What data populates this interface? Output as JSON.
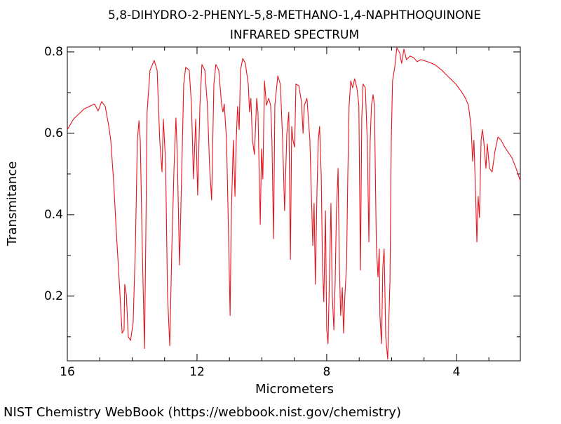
{
  "chart_data": {
    "type": "line",
    "title": "5,8-DIHYDRO-2-PHENYL-5,8-METHANO-1,4-NAPHTHOQUINONE",
    "subtitle": "INFRARED SPECTRUM",
    "x_label": "Micrometers",
    "y_label": "Transmitance",
    "xlim": [
      16,
      2.03
    ],
    "ylim": [
      0.041,
      0.812
    ],
    "xticks": [
      16,
      12,
      8,
      4
    ],
    "yticks": [
      0.2,
      0.4,
      0.6,
      0.8
    ],
    "xminorticks": [
      15,
      14,
      13,
      11,
      10,
      9,
      7,
      6,
      5,
      3
    ],
    "yminorticks": [
      0.1,
      0.3,
      0.5,
      0.7
    ],
    "color": "#e8141b",
    "x": [
      16.0,
      15.81,
      15.48,
      15.16,
      15.05,
      14.94,
      14.83,
      14.72,
      14.66,
      14.57,
      14.49,
      14.4,
      14.31,
      14.25,
      14.23,
      14.18,
      14.12,
      14.05,
      13.97,
      13.9,
      13.84,
      13.79,
      13.75,
      13.69,
      13.62,
      13.58,
      13.54,
      13.45,
      13.32,
      13.23,
      13.15,
      13.08,
      13.04,
      12.97,
      12.91,
      12.84,
      12.78,
      12.71,
      12.65,
      12.61,
      12.54,
      12.5,
      12.41,
      12.35,
      12.24,
      12.17,
      12.11,
      12.04,
      11.98,
      11.91,
      11.85,
      11.76,
      11.68,
      11.61,
      11.55,
      11.48,
      11.42,
      11.33,
      11.24,
      11.2,
      11.16,
      11.09,
      11.03,
      10.98,
      10.94,
      10.88,
      10.83,
      10.79,
      10.75,
      10.7,
      10.66,
      10.59,
      10.51,
      10.42,
      10.38,
      10.34,
      10.29,
      10.23,
      10.16,
      10.12,
      10.05,
      10.01,
      9.97,
      9.92,
      9.86,
      9.79,
      9.73,
      9.69,
      9.64,
      9.6,
      9.51,
      9.43,
      9.36,
      9.3,
      9.23,
      9.17,
      9.12,
      9.08,
      9.04,
      8.99,
      8.95,
      8.86,
      8.78,
      8.73,
      8.69,
      8.61,
      8.52,
      8.43,
      8.39,
      8.35,
      8.3,
      8.26,
      8.22,
      8.17,
      8.13,
      8.09,
      8.04,
      8.0,
      7.96,
      7.91,
      7.87,
      7.83,
      7.78,
      7.74,
      7.7,
      7.65,
      7.61,
      7.57,
      7.52,
      7.48,
      7.44,
      7.39,
      7.35,
      7.31,
      7.26,
      7.2,
      7.14,
      7.07,
      7.01,
      6.96,
      6.92,
      6.88,
      6.81,
      6.75,
      6.7,
      6.66,
      6.62,
      6.57,
      6.53,
      6.47,
      6.42,
      6.38,
      6.36,
      6.31,
      6.27,
      6.23,
      6.18,
      6.12,
      6.05,
      6.01,
      5.97,
      5.9,
      5.84,
      5.75,
      5.69,
      5.62,
      5.54,
      5.43,
      5.32,
      5.21,
      5.1,
      4.89,
      4.67,
      4.45,
      4.24,
      4.02,
      3.85,
      3.72,
      3.63,
      3.55,
      3.5,
      3.46,
      3.42,
      3.37,
      3.33,
      3.29,
      3.24,
      3.2,
      3.16,
      3.09,
      3.05,
      2.98,
      2.9,
      2.81,
      2.72,
      2.62,
      2.51,
      2.29,
      2.16,
      2.03
    ],
    "values": [
      0.609,
      0.635,
      0.66,
      0.672,
      0.655,
      0.678,
      0.666,
      0.617,
      0.583,
      0.479,
      0.359,
      0.238,
      0.109,
      0.117,
      0.229,
      0.203,
      0.1,
      0.091,
      0.135,
      0.324,
      0.583,
      0.631,
      0.583,
      0.324,
      0.071,
      0.341,
      0.652,
      0.755,
      0.779,
      0.755,
      0.583,
      0.505,
      0.635,
      0.531,
      0.203,
      0.078,
      0.307,
      0.514,
      0.638,
      0.548,
      0.276,
      0.41,
      0.721,
      0.762,
      0.755,
      0.669,
      0.488,
      0.635,
      0.448,
      0.669,
      0.769,
      0.755,
      0.669,
      0.514,
      0.436,
      0.721,
      0.769,
      0.755,
      0.669,
      0.652,
      0.672,
      0.583,
      0.359,
      0.152,
      0.41,
      0.583,
      0.445,
      0.583,
      0.666,
      0.609,
      0.755,
      0.784,
      0.772,
      0.721,
      0.652,
      0.686,
      0.583,
      0.548,
      0.686,
      0.652,
      0.376,
      0.562,
      0.488,
      0.729,
      0.669,
      0.686,
      0.669,
      0.583,
      0.341,
      0.669,
      0.741,
      0.721,
      0.583,
      0.41,
      0.6,
      0.652,
      0.29,
      0.617,
      0.583,
      0.566,
      0.721,
      0.717,
      0.678,
      0.6,
      0.669,
      0.686,
      0.583,
      0.324,
      0.428,
      0.229,
      0.462,
      0.583,
      0.617,
      0.497,
      0.272,
      0.186,
      0.41,
      0.117,
      0.083,
      0.272,
      0.428,
      0.203,
      0.117,
      0.238,
      0.41,
      0.514,
      0.272,
      0.152,
      0.221,
      0.109,
      0.203,
      0.272,
      0.497,
      0.669,
      0.729,
      0.712,
      0.734,
      0.712,
      0.669,
      0.264,
      0.635,
      0.721,
      0.712,
      0.583,
      0.333,
      0.583,
      0.669,
      0.695,
      0.669,
      0.324,
      0.247,
      0.316,
      0.152,
      0.083,
      0.272,
      0.316,
      0.1,
      0.045,
      0.238,
      0.583,
      0.729,
      0.764,
      0.81,
      0.798,
      0.772,
      0.807,
      0.781,
      0.79,
      0.786,
      0.776,
      0.781,
      0.776,
      0.769,
      0.755,
      0.738,
      0.721,
      0.703,
      0.686,
      0.669,
      0.617,
      0.531,
      0.583,
      0.479,
      0.333,
      0.445,
      0.393,
      0.583,
      0.609,
      0.583,
      0.514,
      0.574,
      0.514,
      0.505,
      0.557,
      0.591,
      0.583,
      0.566,
      0.54,
      0.514,
      0.483
    ]
  },
  "footer": "NIST Chemistry WebBook (https://webbook.nist.gov/chemistry)"
}
